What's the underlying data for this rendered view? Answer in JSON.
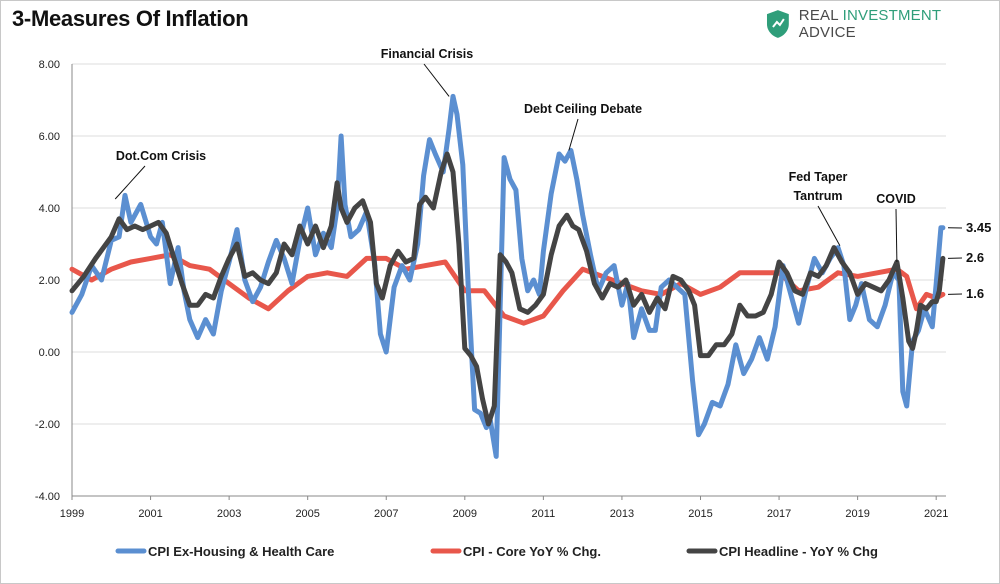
{
  "title": "3-Measures Of Inflation",
  "brand": {
    "word1": "REAL ",
    "word2": "INVESTMENT",
    "word3": " ADVICE",
    "icon": "shield-icon"
  },
  "colors": {
    "ex_housing": "#5b8fd1",
    "core": "#e8574b",
    "headline": "#444444",
    "grid": "#dedede",
    "axis": "#888888"
  },
  "chart_data": {
    "type": "line",
    "title": "3-Measures Of Inflation",
    "xlabel": "",
    "ylabel": "",
    "xlim": [
      1999,
      2021.25
    ],
    "ylim": [
      -4,
      8
    ],
    "yticks": [
      -4,
      -2,
      0,
      2,
      4,
      6,
      8
    ],
    "ytick_labels": [
      "-4.00",
      "-2.00",
      "0.00",
      "2.00",
      "4.00",
      "6.00",
      "8.00"
    ],
    "xticks": [
      1999,
      2001,
      2003,
      2005,
      2007,
      2009,
      2011,
      2013,
      2015,
      2017,
      2019,
      2021
    ],
    "xtick_labels": [
      "1999",
      "2001",
      "2003",
      "2005",
      "2007",
      "2009",
      "2011",
      "2013",
      "2015",
      "2017",
      "2019",
      "2021"
    ],
    "grid": "horizontal",
    "legend_position": "bottom",
    "series": [
      {
        "name": "CPI Ex-Housing & Health Care",
        "key": "ex_housing",
        "x": [
          1999.0,
          1999.25,
          1999.5,
          1999.75,
          2000.0,
          2000.2,
          2000.35,
          2000.5,
          2000.75,
          2001.0,
          2001.15,
          2001.3,
          2001.5,
          2001.7,
          2001.85,
          2002.0,
          2002.2,
          2002.4,
          2002.6,
          2002.8,
          2003.0,
          2003.2,
          2003.4,
          2003.6,
          2003.8,
          2004.0,
          2004.2,
          2004.4,
          2004.6,
          2004.8,
          2005.0,
          2005.2,
          2005.4,
          2005.6,
          2005.75,
          2005.85,
          2005.95,
          2006.1,
          2006.3,
          2006.5,
          2006.7,
          2006.85,
          2007.0,
          2007.2,
          2007.4,
          2007.6,
          2007.8,
          2007.95,
          2008.1,
          2008.25,
          2008.45,
          2008.6,
          2008.7,
          2008.8,
          2008.95,
          2009.1,
          2009.25,
          2009.4,
          2009.55,
          2009.65,
          2009.8,
          2010.0,
          2010.15,
          2010.3,
          2010.45,
          2010.6,
          2010.75,
          2010.9,
          2011.0,
          2011.2,
          2011.4,
          2011.55,
          2011.7,
          2011.85,
          2012.0,
          2012.2,
          2012.4,
          2012.6,
          2012.8,
          2013.0,
          2013.15,
          2013.3,
          2013.5,
          2013.7,
          2013.85,
          2014.0,
          2014.2,
          2014.4,
          2014.6,
          2014.8,
          2014.95,
          2015.1,
          2015.3,
          2015.5,
          2015.7,
          2015.9,
          2016.1,
          2016.3,
          2016.5,
          2016.7,
          2016.9,
          2017.1,
          2017.3,
          2017.5,
          2017.7,
          2017.9,
          2018.1,
          2018.3,
          2018.5,
          2018.65,
          2018.8,
          2018.95,
          2019.1,
          2019.3,
          2019.5,
          2019.7,
          2019.9,
          2020.05,
          2020.15,
          2020.25,
          2020.4,
          2020.55,
          2020.7,
          2020.9,
          2021.0,
          2021.12,
          2021.17
        ],
        "y": [
          1.1,
          1.6,
          2.4,
          2.0,
          3.1,
          3.2,
          4.35,
          3.6,
          4.1,
          3.2,
          3.0,
          3.6,
          1.9,
          2.9,
          1.7,
          0.9,
          0.4,
          0.9,
          0.5,
          1.7,
          2.5,
          3.4,
          2.0,
          1.4,
          1.8,
          2.5,
          3.1,
          2.6,
          1.9,
          3.1,
          4.0,
          2.7,
          3.3,
          2.9,
          4.0,
          6.0,
          4.1,
          3.2,
          3.4,
          3.9,
          2.5,
          0.5,
          0.0,
          1.8,
          2.4,
          2.0,
          3.0,
          4.9,
          5.9,
          5.5,
          5.0,
          6.2,
          7.1,
          6.6,
          5.2,
          1.5,
          -1.6,
          -1.7,
          -2.1,
          -1.9,
          -2.9,
          5.4,
          4.8,
          4.5,
          2.6,
          1.7,
          2.0,
          1.6,
          2.8,
          4.4,
          5.5,
          5.3,
          5.6,
          4.8,
          3.8,
          2.7,
          1.7,
          2.2,
          2.4,
          1.3,
          1.9,
          0.4,
          1.2,
          0.6,
          0.6,
          1.8,
          2.0,
          1.8,
          1.6,
          -0.8,
          -2.3,
          -2.0,
          -1.4,
          -1.5,
          -0.9,
          0.2,
          -0.6,
          -0.2,
          0.4,
          -0.2,
          0.7,
          2.4,
          1.6,
          0.8,
          1.8,
          2.6,
          2.2,
          2.6,
          2.9,
          2.4,
          0.9,
          1.3,
          1.9,
          0.9,
          0.7,
          1.3,
          2.2,
          2.0,
          -1.1,
          -1.5,
          0.3,
          0.6,
          1.2,
          0.7,
          1.9,
          3.45,
          3.45
        ]
      },
      {
        "name": "CPI - Core YoY % Chg.",
        "key": "core",
        "x": [
          1999.0,
          1999.5,
          2000.0,
          2000.5,
          2001.0,
          2001.5,
          2002.0,
          2002.5,
          2003.0,
          2003.5,
          2004.0,
          2004.5,
          2005.0,
          2005.5,
          2006.0,
          2006.5,
          2007.0,
          2007.5,
          2008.0,
          2008.5,
          2009.0,
          2009.5,
          2010.0,
          2010.5,
          2011.0,
          2011.5,
          2012.0,
          2012.5,
          2013.0,
          2013.5,
          2014.0,
          2014.5,
          2015.0,
          2015.5,
          2016.0,
          2016.5,
          2017.0,
          2017.5,
          2018.0,
          2018.5,
          2019.0,
          2019.5,
          2020.0,
          2020.25,
          2020.5,
          2020.75,
          2021.0,
          2021.17
        ],
        "y": [
          2.3,
          2.0,
          2.3,
          2.5,
          2.6,
          2.7,
          2.4,
          2.3,
          1.9,
          1.5,
          1.2,
          1.7,
          2.1,
          2.2,
          2.1,
          2.6,
          2.6,
          2.3,
          2.4,
          2.5,
          1.7,
          1.7,
          1.0,
          0.8,
          1.0,
          1.7,
          2.3,
          2.1,
          1.9,
          1.7,
          1.6,
          1.9,
          1.6,
          1.8,
          2.2,
          2.2,
          2.2,
          1.7,
          1.8,
          2.2,
          2.1,
          2.2,
          2.3,
          2.1,
          1.2,
          1.6,
          1.5,
          1.6
        ]
      },
      {
        "name": "CPI Headline - YoY % Chg",
        "key": "headline",
        "x": [
          1999.0,
          1999.3,
          1999.6,
          2000.0,
          2000.2,
          2000.4,
          2000.6,
          2000.8,
          2001.0,
          2001.2,
          2001.4,
          2001.6,
          2001.8,
          2002.0,
          2002.2,
          2002.4,
          2002.6,
          2002.8,
          2003.0,
          2003.2,
          2003.4,
          2003.6,
          2003.8,
          2004.0,
          2004.2,
          2004.4,
          2004.6,
          2004.8,
          2005.0,
          2005.2,
          2005.4,
          2005.6,
          2005.75,
          2005.85,
          2006.0,
          2006.2,
          2006.4,
          2006.6,
          2006.75,
          2006.9,
          2007.1,
          2007.3,
          2007.5,
          2007.7,
          2007.85,
          2008.0,
          2008.2,
          2008.4,
          2008.55,
          2008.7,
          2008.85,
          2009.0,
          2009.15,
          2009.3,
          2009.45,
          2009.6,
          2009.75,
          2009.9,
          2010.05,
          2010.2,
          2010.4,
          2010.6,
          2010.8,
          2011.0,
          2011.2,
          2011.4,
          2011.6,
          2011.75,
          2011.9,
          2012.1,
          2012.3,
          2012.5,
          2012.7,
          2012.9,
          2013.1,
          2013.3,
          2013.5,
          2013.7,
          2013.9,
          2014.1,
          2014.3,
          2014.5,
          2014.7,
          2014.85,
          2015.0,
          2015.2,
          2015.4,
          2015.6,
          2015.8,
          2016.0,
          2016.2,
          2016.4,
          2016.6,
          2016.8,
          2017.0,
          2017.2,
          2017.4,
          2017.6,
          2017.8,
          2018.0,
          2018.2,
          2018.4,
          2018.6,
          2018.8,
          2019.0,
          2019.2,
          2019.4,
          2019.6,
          2019.8,
          2020.0,
          2020.15,
          2020.3,
          2020.4,
          2020.5,
          2020.6,
          2020.75,
          2020.9,
          2021.0,
          2021.08,
          2021.17
        ],
        "y": [
          1.7,
          2.1,
          2.6,
          3.2,
          3.7,
          3.4,
          3.5,
          3.4,
          3.5,
          3.6,
          3.3,
          2.6,
          1.9,
          1.3,
          1.3,
          1.6,
          1.5,
          2.1,
          2.6,
          3.0,
          2.1,
          2.2,
          2.0,
          1.9,
          2.2,
          3.0,
          2.7,
          3.5,
          3.0,
          3.5,
          2.9,
          3.5,
          4.7,
          4.0,
          3.6,
          4.0,
          4.2,
          3.6,
          1.9,
          1.5,
          2.4,
          2.8,
          2.5,
          2.6,
          4.1,
          4.3,
          4.0,
          5.0,
          5.5,
          5.0,
          3.0,
          0.1,
          -0.1,
          -0.4,
          -1.3,
          -2.0,
          -1.5,
          2.7,
          2.5,
          2.2,
          1.2,
          1.1,
          1.3,
          1.6,
          2.7,
          3.5,
          3.8,
          3.5,
          3.4,
          2.8,
          1.9,
          1.5,
          1.9,
          1.8,
          2.0,
          1.3,
          1.6,
          1.1,
          1.5,
          1.2,
          2.1,
          2.0,
          1.7,
          1.3,
          -0.1,
          -0.1,
          0.2,
          0.2,
          0.5,
          1.3,
          1.0,
          1.0,
          1.1,
          1.6,
          2.5,
          2.2,
          1.7,
          1.6,
          2.2,
          2.1,
          2.4,
          2.9,
          2.5,
          2.2,
          1.6,
          1.9,
          1.8,
          1.7,
          2.0,
          2.5,
          1.5,
          0.3,
          0.1,
          0.6,
          1.3,
          1.2,
          1.4,
          1.4,
          1.7,
          2.6
        ]
      }
    ],
    "annotations": [
      {
        "text": "Dot.Com Crisis",
        "x": 2000.1,
        "y": 4.25
      },
      {
        "text": "Financial Crisis",
        "x": 2008.6,
        "y": 7.1
      },
      {
        "text": "Debt Ceiling Debate",
        "x": 2011.65,
        "y": 5.6
      },
      {
        "text": "Fed Taper",
        "x": 2018.55,
        "y": 2.95
      },
      {
        "text": "Tantrum",
        "x": 2018.55,
        "y": 2.95
      },
      {
        "text": "COVID",
        "x": 2020.0,
        "y": 2.5
      }
    ],
    "end_labels": [
      {
        "text": "3.45",
        "series": "ex_housing",
        "y": 3.45
      },
      {
        "text": "2.6",
        "series": "headline",
        "y": 2.6
      },
      {
        "text": "1.6",
        "series": "core",
        "y": 1.6
      }
    ]
  }
}
